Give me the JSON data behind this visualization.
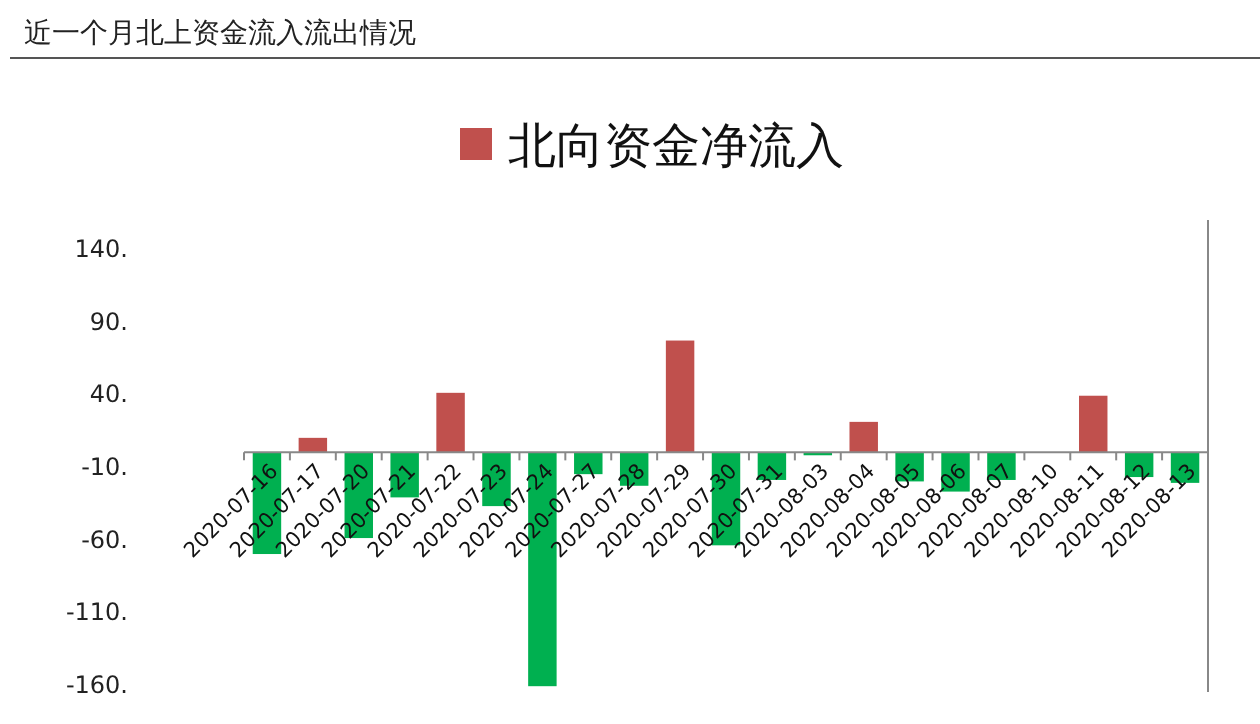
{
  "chart_data": {
    "type": "bar",
    "title": "近一个月北上资金流入流出情况",
    "categories": [
      "2020-07-16",
      "2020-07-17",
      "2020-07-20",
      "2020-07-21",
      "2020-07-22",
      "2020-07-23",
      "2020-07-24",
      "2020-07-27",
      "2020-07-28",
      "2020-07-29",
      "2020-07-30",
      "2020-07-31",
      "2020-08-03",
      "2020-08-04",
      "2020-08-05",
      "2020-08-06",
      "2020-08-07",
      "2020-08-10",
      "2020-08-11",
      "2020-08-12",
      "2020-08-13"
    ],
    "series": [
      {
        "name": "北向资金净流入",
        "color": "#c0504d",
        "colors": [
          "#00b050",
          "#c0504d",
          "#00b050",
          "#00b050",
          "#c0504d",
          "#00b050",
          "#00b050",
          "#00b050",
          "#00b050",
          "#c0504d",
          "#00b050",
          "#00b050",
          "#00b050",
          "#c0504d",
          "#00b050",
          "#00b050",
          "#00b050",
          "#00b050",
          "#c0504d",
          "#00b050",
          "#00b050"
        ],
        "values": [
          -70,
          10,
          -59,
          -31,
          41,
          -37,
          -161,
          -15,
          -23,
          77,
          -64,
          -19,
          -2,
          21,
          -20,
          -27,
          -19,
          0,
          39,
          -17,
          -21
        ]
      }
    ],
    "ylim": [
      -165,
      160
    ],
    "yticks": [
      {
        "value": 140,
        "label": "140."
      },
      {
        "value": 90,
        "label": "90."
      },
      {
        "value": 40,
        "label": "40."
      },
      {
        "value": -10,
        "label": "-10."
      },
      {
        "value": -60,
        "label": "-60."
      },
      {
        "value": -110,
        "label": "-110."
      },
      {
        "value": -160,
        "label": "-160."
      }
    ],
    "legend": "top",
    "grid": false
  }
}
